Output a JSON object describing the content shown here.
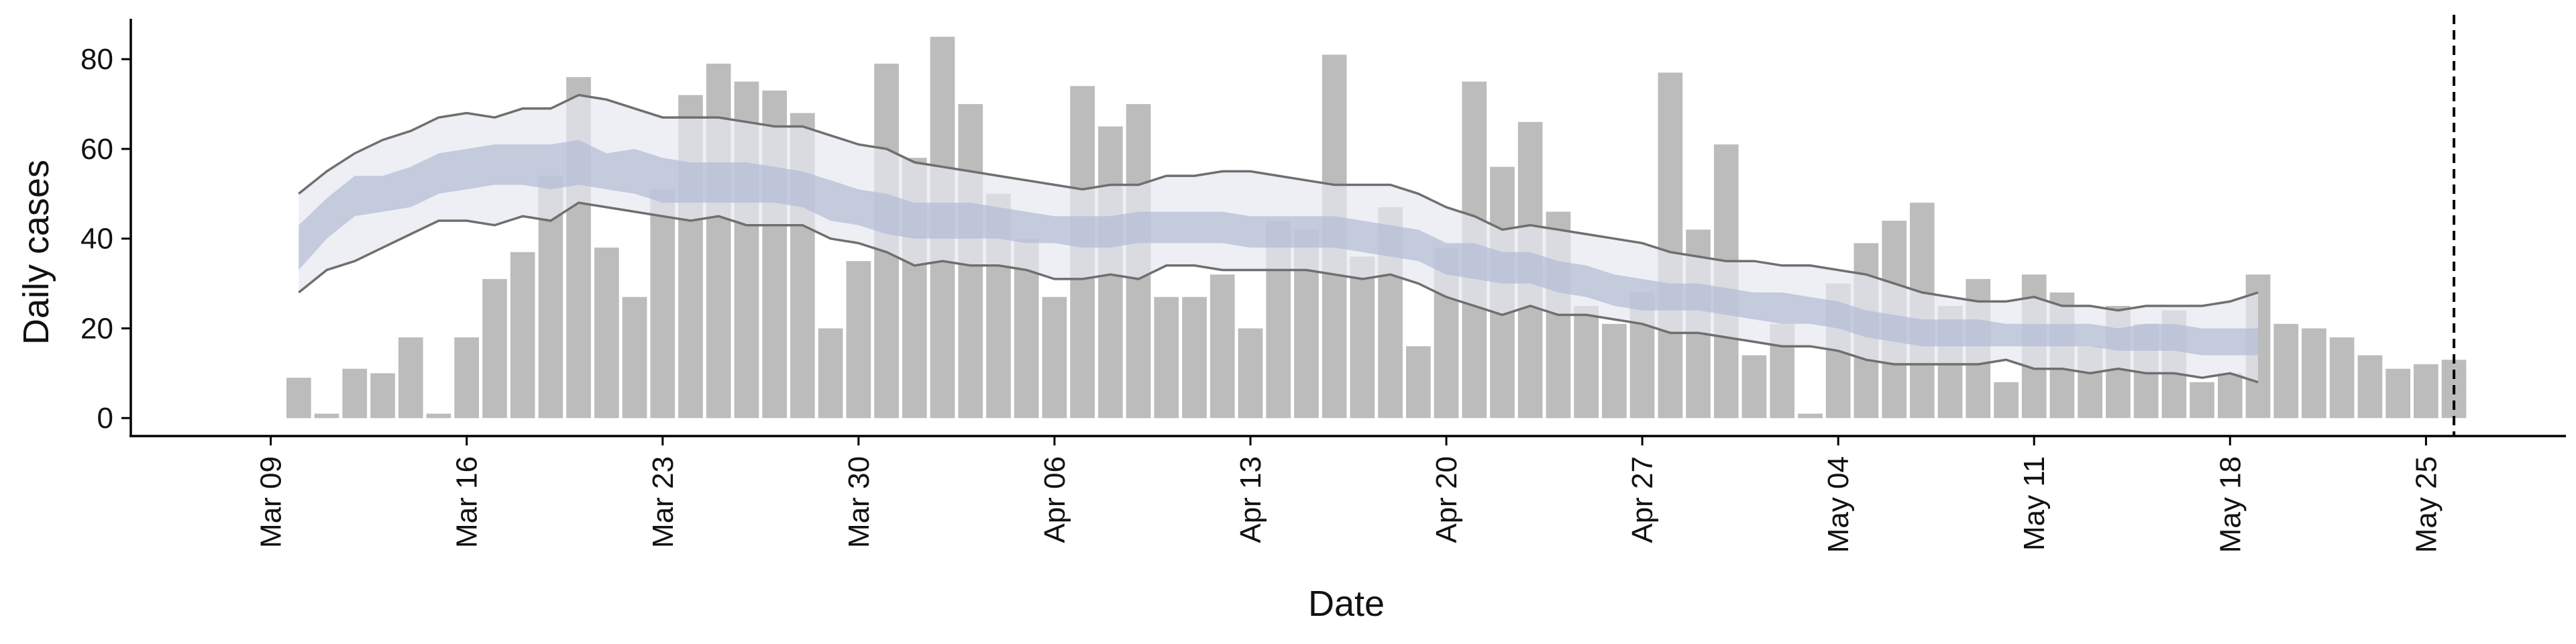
{
  "chart_data": {
    "type": "bar",
    "xlabel": "Date",
    "ylabel": "Daily cases",
    "ylim": [
      -4,
      89
    ],
    "yticks": [
      0,
      20,
      40,
      60,
      80
    ],
    "x_start": "Mar 09",
    "x_start_iso": "2020-03-09",
    "xlim": [
      "2020-03-04",
      "2020-05-30"
    ],
    "date_ticks": [
      {
        "date": "2020-03-09",
        "label": "Mar 09"
      },
      {
        "date": "2020-03-16",
        "label": "Mar 16"
      },
      {
        "date": "2020-03-23",
        "label": "Mar 23"
      },
      {
        "date": "2020-03-30",
        "label": "Mar 30"
      },
      {
        "date": "2020-04-06",
        "label": "Apr 06"
      },
      {
        "date": "2020-04-13",
        "label": "Apr 13"
      },
      {
        "date": "2020-04-20",
        "label": "Apr 20"
      },
      {
        "date": "2020-04-27",
        "label": "Apr 27"
      },
      {
        "date": "2020-05-04",
        "label": "May 04"
      },
      {
        "date": "2020-05-11",
        "label": "May 11"
      },
      {
        "date": "2020-05-18",
        "label": "May 18"
      },
      {
        "date": "2020-05-25",
        "label": "May 25"
      }
    ],
    "bars_start_date": "2020-03-10",
    "bars": [
      9,
      1,
      11,
      10,
      18,
      1,
      18,
      31,
      37,
      54,
      76,
      38,
      27,
      51,
      72,
      79,
      75,
      73,
      68,
      20,
      35,
      79,
      58,
      85,
      70,
      50,
      40,
      27,
      74,
      65,
      70,
      27,
      27,
      32,
      20,
      44,
      42,
      81,
      36,
      47,
      16,
      38,
      75,
      56,
      66,
      46,
      25,
      21,
      28,
      77,
      42,
      61,
      14,
      21,
      1,
      30,
      39,
      44,
      48,
      25,
      31,
      8,
      32,
      28,
      16,
      25,
      21,
      24,
      8,
      10,
      32,
      21,
      20,
      18,
      14,
      11,
      12,
      13
    ],
    "bands_start_date": "2020-03-10",
    "band_outer_upper": [
      50,
      55,
      59,
      62,
      64,
      67,
      68,
      67,
      69,
      69,
      72,
      71,
      69,
      67,
      67,
      67,
      66,
      65,
      65,
      63,
      61,
      60,
      57,
      56,
      55,
      54,
      53,
      52,
      51,
      52,
      52,
      54,
      54,
      55,
      55,
      54,
      53,
      52,
      52,
      52,
      50,
      47,
      45,
      42,
      43,
      42,
      41,
      40,
      39,
      37,
      36,
      35,
      35,
      34,
      34,
      33,
      32,
      30,
      28,
      27,
      26,
      26,
      27,
      25,
      25,
      24,
      25,
      25,
      25,
      26,
      28
    ],
    "band_outer_lower": [
      28,
      33,
      35,
      38,
      41,
      44,
      44,
      43,
      45,
      44,
      48,
      47,
      46,
      45,
      44,
      45,
      43,
      43,
      43,
      40,
      39,
      37,
      34,
      35,
      34,
      34,
      33,
      31,
      31,
      32,
      31,
      34,
      34,
      33,
      33,
      33,
      33,
      32,
      31,
      32,
      30,
      27,
      25,
      23,
      25,
      23,
      23,
      22,
      21,
      19,
      19,
      18,
      17,
      16,
      16,
      15,
      13,
      12,
      12,
      12,
      12,
      13,
      11,
      11,
      10,
      11,
      10,
      10,
      9,
      10,
      8
    ],
    "band_inner_upper": [
      43,
      49,
      54,
      54,
      56,
      59,
      60,
      61,
      61,
      61,
      62,
      59,
      60,
      58,
      57,
      57,
      57,
      56,
      55,
      53,
      51,
      50,
      48,
      48,
      48,
      47,
      46,
      45,
      45,
      45,
      46,
      46,
      46,
      46,
      45,
      45,
      45,
      45,
      44,
      43,
      42,
      39,
      39,
      37,
      37,
      35,
      34,
      32,
      31,
      30,
      30,
      29,
      28,
      28,
      27,
      26,
      24,
      23,
      22,
      22,
      22,
      21,
      21,
      21,
      21,
      20,
      21,
      21,
      20,
      20,
      20
    ],
    "band_inner_lower": [
      33,
      40,
      45,
      46,
      47,
      50,
      51,
      52,
      52,
      51,
      52,
      51,
      50,
      48,
      48,
      48,
      48,
      48,
      47,
      44,
      43,
      41,
      40,
      40,
      40,
      40,
      39,
      39,
      38,
      38,
      39,
      39,
      39,
      39,
      38,
      38,
      38,
      38,
      37,
      36,
      35,
      32,
      31,
      30,
      30,
      28,
      27,
      25,
      24,
      24,
      24,
      23,
      22,
      21,
      21,
      20,
      18,
      17,
      16,
      16,
      16,
      16,
      16,
      16,
      16,
      15,
      15,
      15,
      14,
      14,
      14
    ],
    "vline_date": "2020-05-26",
    "colors": {
      "bar": "#bcbcbc",
      "outer_band": "#e6e8f1",
      "inner_band": "#b3bdd4",
      "band_edge": "#6f6f6f",
      "axis": "#000000",
      "vline": "#000000"
    }
  }
}
